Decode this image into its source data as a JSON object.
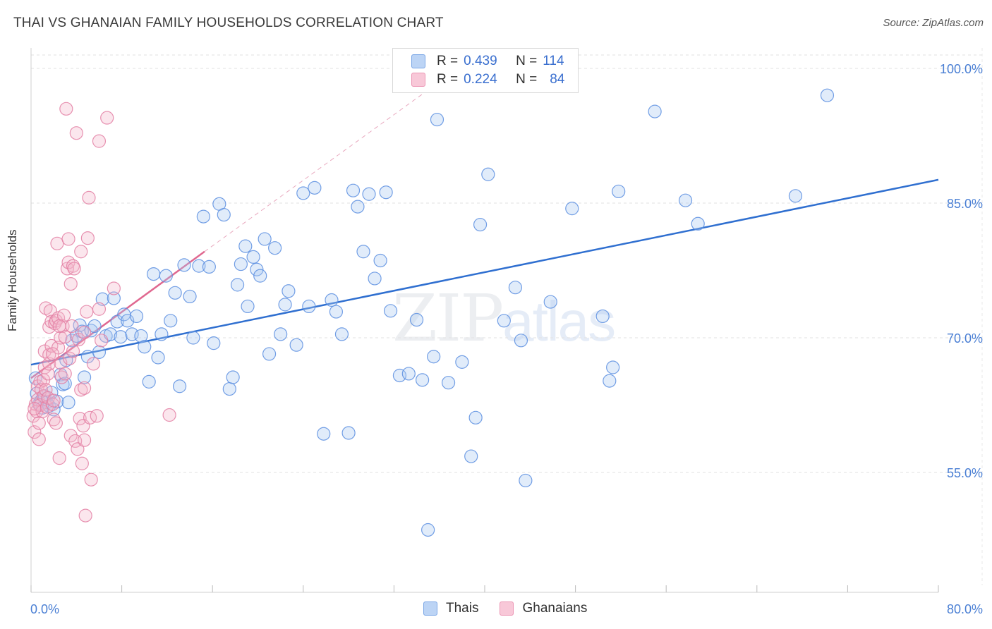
{
  "title": "THAI VS GHANAIAN FAMILY HOUSEHOLDS CORRELATION CHART",
  "source": "Source: ZipAtlas.com",
  "watermark": {
    "zip": "ZIP",
    "atlas": "atlas"
  },
  "legend": {
    "rows": [
      {
        "r_label": "R =",
        "r_value": "0.439",
        "n_label": "N =",
        "n_value": "114",
        "color": "#a8c8f0"
      },
      {
        "r_label": "R =",
        "r_value": "0.224",
        "n_label": "N =",
        "n_value": "84",
        "color": "#f4b8cc"
      }
    ]
  },
  "bottom_legend": [
    {
      "label": "Thais",
      "color": "#a8c8f0"
    },
    {
      "label": "Ghanaians",
      "color": "#f4b8cc"
    }
  ],
  "chart_data": {
    "type": "scatter",
    "title": "THAI VS GHANAIAN FAMILY HOUSEHOLDS CORRELATION CHART",
    "xlabel": "",
    "ylabel": "Family Households",
    "xlim": [
      0,
      80
    ],
    "ylim": [
      40,
      102
    ],
    "y_ticks": [
      {
        "value": 100,
        "label": "100.0%"
      },
      {
        "value": 85,
        "label": "85.0%"
      },
      {
        "value": 70,
        "label": "70.0%"
      },
      {
        "value": 55,
        "label": "55.0%"
      }
    ],
    "x_tick_labels": [
      {
        "value": 0,
        "label": "0.0%"
      },
      {
        "value": 80,
        "label": "80.0%"
      }
    ],
    "grid": true,
    "legend_position": "top-center",
    "series": [
      {
        "name": "Thais",
        "color": "#5a8ee0",
        "fill": "#a8c8f0",
        "trend": {
          "x": [
            0,
            80
          ],
          "y": [
            67.0,
            87.6
          ],
          "color": "#2f6fd0"
        },
        "points": [
          [
            0.4,
            65.5
          ],
          [
            0.5,
            63.8
          ],
          [
            0.7,
            62.6
          ],
          [
            0.9,
            63.0
          ],
          [
            1.0,
            62.2
          ],
          [
            1.2,
            63.5
          ],
          [
            1.4,
            62.8
          ],
          [
            1.6,
            62.4
          ],
          [
            1.8,
            63.9
          ],
          [
            2.0,
            62.0
          ],
          [
            2.3,
            62.9
          ],
          [
            2.6,
            65.9
          ],
          [
            2.8,
            64.8
          ],
          [
            3.0,
            64.9
          ],
          [
            3.1,
            67.5
          ],
          [
            3.3,
            62.8
          ],
          [
            3.6,
            69.7
          ],
          [
            4.0,
            70.2
          ],
          [
            4.3,
            71.4
          ],
          [
            4.5,
            70.7
          ],
          [
            4.7,
            65.6
          ],
          [
            5.0,
            67.9
          ],
          [
            5.3,
            70.8
          ],
          [
            5.6,
            71.3
          ],
          [
            6.0,
            68.4
          ],
          [
            6.3,
            74.3
          ],
          [
            6.6,
            70.2
          ],
          [
            7.0,
            70.4
          ],
          [
            7.3,
            74.4
          ],
          [
            7.6,
            71.8
          ],
          [
            7.9,
            70.1
          ],
          [
            8.2,
            72.6
          ],
          [
            8.5,
            71.9
          ],
          [
            8.9,
            70.4
          ],
          [
            9.3,
            72.4
          ],
          [
            9.7,
            70.2
          ],
          [
            10.0,
            69.0
          ],
          [
            10.4,
            65.1
          ],
          [
            10.8,
            77.1
          ],
          [
            11.2,
            67.8
          ],
          [
            11.5,
            70.4
          ],
          [
            11.9,
            76.9
          ],
          [
            12.3,
            71.9
          ],
          [
            12.7,
            75.0
          ],
          [
            13.1,
            64.6
          ],
          [
            13.5,
            78.1
          ],
          [
            14.0,
            74.6
          ],
          [
            14.3,
            70.0
          ],
          [
            14.8,
            78.0
          ],
          [
            15.2,
            83.5
          ],
          [
            15.7,
            77.9
          ],
          [
            16.1,
            69.4
          ],
          [
            16.6,
            84.9
          ],
          [
            17.0,
            83.7
          ],
          [
            17.5,
            64.3
          ],
          [
            17.8,
            65.6
          ],
          [
            18.2,
            75.9
          ],
          [
            18.5,
            78.2
          ],
          [
            18.9,
            80.2
          ],
          [
            19.1,
            73.5
          ],
          [
            19.6,
            79.0
          ],
          [
            19.9,
            77.6
          ],
          [
            20.2,
            76.9
          ],
          [
            20.6,
            81.0
          ],
          [
            21.0,
            68.2
          ],
          [
            21.5,
            80.0
          ],
          [
            22.0,
            70.4
          ],
          [
            22.4,
            73.7
          ],
          [
            22.7,
            75.2
          ],
          [
            23.4,
            69.2
          ],
          [
            24.0,
            86.1
          ],
          [
            24.5,
            73.5
          ],
          [
            25.0,
            86.7
          ],
          [
            25.8,
            59.3
          ],
          [
            26.5,
            74.2
          ],
          [
            26.9,
            72.9
          ],
          [
            27.4,
            70.4
          ],
          [
            28.0,
            59.4
          ],
          [
            28.4,
            86.4
          ],
          [
            28.8,
            84.6
          ],
          [
            29.3,
            79.6
          ],
          [
            29.8,
            86.0
          ],
          [
            30.3,
            76.6
          ],
          [
            30.8,
            78.6
          ],
          [
            31.3,
            86.2
          ],
          [
            31.7,
            73.0
          ],
          [
            32.5,
            65.8
          ],
          [
            33.3,
            66.0
          ],
          [
            34.0,
            72.0
          ],
          [
            34.5,
            65.3
          ],
          [
            35.0,
            48.6
          ],
          [
            35.5,
            67.9
          ],
          [
            35.8,
            94.3
          ],
          [
            36.8,
            65.0
          ],
          [
            38.0,
            67.3
          ],
          [
            38.8,
            56.8
          ],
          [
            39.2,
            61.1
          ],
          [
            39.6,
            82.6
          ],
          [
            40.3,
            88.2
          ],
          [
            41.7,
            71.9
          ],
          [
            42.7,
            75.6
          ],
          [
            43.2,
            69.7
          ],
          [
            43.6,
            54.1
          ],
          [
            45.8,
            74.0
          ],
          [
            47.7,
            84.4
          ],
          [
            50.4,
            72.4
          ],
          [
            51.0,
            65.2
          ],
          [
            51.3,
            66.7
          ],
          [
            51.8,
            86.3
          ],
          [
            55.0,
            95.2
          ],
          [
            57.7,
            85.3
          ],
          [
            58.8,
            82.7
          ],
          [
            67.4,
            85.8
          ],
          [
            70.2,
            97.0
          ]
        ]
      },
      {
        "name": "Ghanaians",
        "color": "#e37fa3",
        "fill": "#f4b8cc",
        "trend": {
          "x": [
            0,
            15.3
          ],
          "y": [
            65.5,
            79.6
          ],
          "color": "#e06890"
        },
        "trend_extension": {
          "x": [
            15.3,
            36.0
          ],
          "y": [
            79.6,
            98.5
          ]
        },
        "points": [
          [
            0.2,
            61.3
          ],
          [
            0.3,
            59.5
          ],
          [
            0.4,
            62.6
          ],
          [
            0.5,
            61.8
          ],
          [
            0.6,
            63.1
          ],
          [
            0.6,
            64.6
          ],
          [
            0.7,
            58.7
          ],
          [
            0.7,
            60.5
          ],
          [
            0.8,
            62.5
          ],
          [
            0.8,
            65.1
          ],
          [
            0.9,
            64.2
          ],
          [
            1.0,
            61.8
          ],
          [
            1.1,
            63.5
          ],
          [
            1.1,
            65.3
          ],
          [
            1.2,
            66.7
          ],
          [
            1.2,
            68.5
          ],
          [
            1.3,
            64.2
          ],
          [
            1.3,
            73.3
          ],
          [
            1.4,
            62.3
          ],
          [
            1.5,
            63.3
          ],
          [
            1.5,
            66.0
          ],
          [
            1.6,
            67.1
          ],
          [
            1.6,
            68.1
          ],
          [
            1.6,
            71.2
          ],
          [
            1.7,
            73.0
          ],
          [
            1.8,
            69.1
          ],
          [
            1.8,
            71.8
          ],
          [
            1.9,
            62.6
          ],
          [
            2.0,
            60.9
          ],
          [
            2.0,
            63.0
          ],
          [
            2.1,
            71.6
          ],
          [
            2.2,
            60.5
          ],
          [
            2.2,
            71.9
          ],
          [
            2.3,
            80.5
          ],
          [
            2.4,
            68.9
          ],
          [
            2.4,
            72.2
          ],
          [
            2.5,
            56.6
          ],
          [
            2.6,
            67.2
          ],
          [
            2.6,
            70.0
          ],
          [
            2.7,
            65.6
          ],
          [
            2.8,
            71.3
          ],
          [
            2.9,
            72.5
          ],
          [
            3.0,
            70.1
          ],
          [
            3.0,
            66.0
          ],
          [
            3.1,
            95.5
          ],
          [
            3.2,
            77.7
          ],
          [
            3.3,
            78.4
          ],
          [
            3.3,
            81.0
          ],
          [
            3.4,
            67.7
          ],
          [
            3.5,
            59.1
          ],
          [
            3.5,
            76.0
          ],
          [
            3.6,
            71.3
          ],
          [
            3.7,
            68.5
          ],
          [
            3.7,
            78.0
          ],
          [
            3.8,
            77.7
          ],
          [
            3.9,
            58.5
          ],
          [
            4.0,
            92.8
          ],
          [
            4.1,
            57.6
          ],
          [
            4.2,
            69.8
          ],
          [
            4.3,
            61.0
          ],
          [
            4.4,
            64.2
          ],
          [
            4.4,
            79.6
          ],
          [
            4.5,
            56.0
          ],
          [
            4.6,
            60.2
          ],
          [
            4.7,
            70.6
          ],
          [
            4.7,
            64.4
          ],
          [
            4.7,
            58.6
          ],
          [
            4.8,
            50.2
          ],
          [
            4.9,
            72.9
          ],
          [
            5.0,
            81.1
          ],
          [
            5.1,
            85.6
          ],
          [
            5.2,
            61.1
          ],
          [
            5.3,
            54.2
          ],
          [
            5.5,
            67.1
          ],
          [
            5.8,
            61.3
          ],
          [
            6.0,
            91.9
          ],
          [
            6.0,
            73.2
          ],
          [
            6.2,
            69.7
          ],
          [
            6.7,
            94.5
          ],
          [
            7.3,
            75.5
          ],
          [
            12.2,
            61.4
          ],
          [
            0.3,
            62.1
          ],
          [
            1.9,
            68.2
          ],
          [
            2.5,
            71.3
          ]
        ]
      }
    ]
  }
}
